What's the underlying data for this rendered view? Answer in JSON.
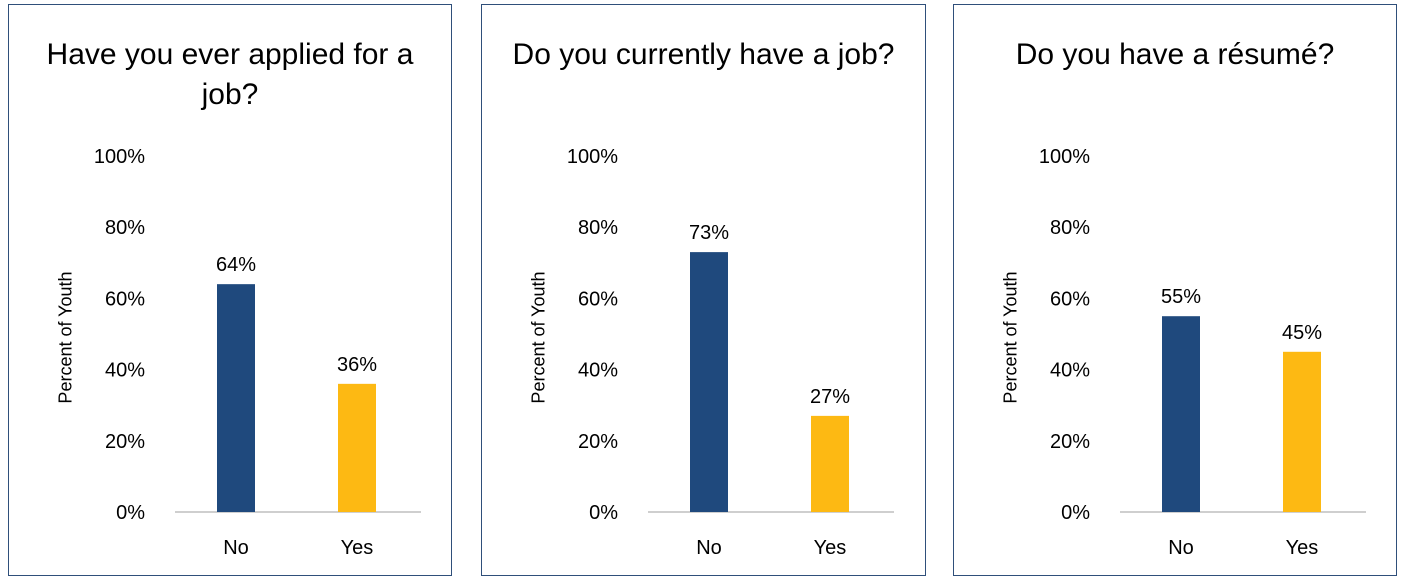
{
  "colors": {
    "no": "#1f497d",
    "yes": "#fdb913",
    "axis": "#bfbfbf",
    "border": "#2f4f7a"
  },
  "chart_data": [
    {
      "type": "bar",
      "title": "Have you ever applied for a job?",
      "ylabel": "Percent of Youth",
      "categories": [
        "No",
        "Yes"
      ],
      "values": [
        64,
        36
      ],
      "data_labels": [
        "64%",
        "36%"
      ],
      "ylim": [
        0,
        100
      ],
      "yticks": [
        "0%",
        "20%",
        "40%",
        "60%",
        "80%",
        "100%"
      ],
      "grid": false
    },
    {
      "type": "bar",
      "title": "Do you currently have a job?",
      "ylabel": "Percent of Youth",
      "categories": [
        "No",
        "Yes"
      ],
      "values": [
        73,
        27
      ],
      "data_labels": [
        "73%",
        "27%"
      ],
      "ylim": [
        0,
        100
      ],
      "yticks": [
        "0%",
        "20%",
        "40%",
        "60%",
        "80%",
        "100%"
      ],
      "grid": false
    },
    {
      "type": "bar",
      "title": "Do you have a résumé?",
      "ylabel": "Percent of Youth",
      "categories": [
        "No",
        "Yes"
      ],
      "values": [
        55,
        45
      ],
      "data_labels": [
        "55%",
        "45%"
      ],
      "ylim": [
        0,
        100
      ],
      "yticks": [
        "0%",
        "20%",
        "40%",
        "60%",
        "80%",
        "100%"
      ],
      "grid": false
    }
  ]
}
